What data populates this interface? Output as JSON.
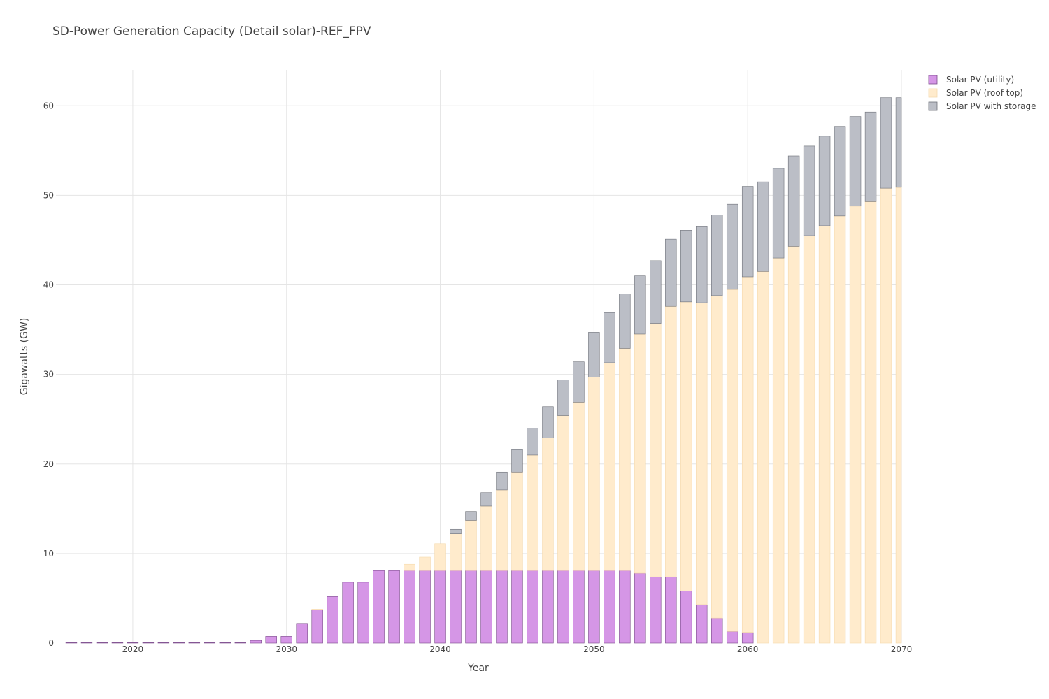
{
  "chart_data": {
    "type": "bar",
    "stacked": true,
    "title": "SD-Power Generation Capacity (Detail solar)-REF_FPV",
    "xlabel": "Year",
    "ylabel": "Gigawatts (GW)",
    "xlim": [
      2015,
      2070
    ],
    "ylim": [
      0,
      64
    ],
    "x_ticks": [
      2020,
      2030,
      2040,
      2050,
      2060,
      2070
    ],
    "y_ticks": [
      0,
      10,
      20,
      30,
      40,
      50,
      60
    ],
    "grid": true,
    "legend_position": "top-right",
    "x": [
      2016,
      2017,
      2018,
      2019,
      2020,
      2021,
      2022,
      2023,
      2024,
      2025,
      2026,
      2027,
      2028,
      2029,
      2030,
      2031,
      2032,
      2033,
      2034,
      2035,
      2036,
      2037,
      2038,
      2039,
      2040,
      2041,
      2042,
      2043,
      2044,
      2045,
      2046,
      2047,
      2048,
      2049,
      2050,
      2051,
      2052,
      2053,
      2054,
      2055,
      2056,
      2057,
      2058,
      2059,
      2060,
      2061,
      2062,
      2063,
      2064,
      2065,
      2066,
      2067,
      2068,
      2069,
      2070
    ],
    "series": [
      {
        "name": "Solar PV (utility)",
        "color": "#d596e6",
        "stroke": "#7a4a8a",
        "values": [
          0.05,
          0.05,
          0.05,
          0.05,
          0.05,
          0.05,
          0.05,
          0.05,
          0.05,
          0.05,
          0.05,
          0.05,
          0.3,
          0.75,
          0.75,
          2.2,
          3.7,
          5.2,
          6.8,
          6.8,
          8.1,
          8.1,
          8.1,
          8.1,
          8.1,
          8.1,
          8.1,
          8.1,
          8.1,
          8.1,
          8.1,
          8.1,
          8.1,
          8.1,
          8.1,
          8.1,
          8.1,
          7.8,
          7.4,
          7.4,
          5.8,
          4.3,
          2.8,
          1.3,
          1.2,
          0,
          0,
          0,
          0,
          0,
          0,
          0,
          0,
          0,
          0
        ]
      },
      {
        "name": "Solar PV (roof top)",
        "color": "#ffebcc",
        "stroke": "#f5d9ad",
        "values": [
          0,
          0,
          0,
          0,
          0,
          0,
          0,
          0,
          0,
          0,
          0,
          0,
          0,
          0,
          0,
          0,
          0.1,
          0,
          0,
          0,
          0,
          0,
          0.7,
          1.5,
          3.0,
          4.1,
          5.6,
          7.2,
          9.0,
          11.0,
          12.9,
          14.8,
          17.3,
          18.8,
          21.6,
          23.2,
          24.8,
          26.7,
          28.3,
          30.2,
          32.3,
          33.7,
          36.0,
          38.2,
          39.7,
          41.5,
          43.0,
          44.3,
          45.5,
          46.6,
          47.7,
          48.8,
          49.3,
          50.8,
          50.9
        ]
      },
      {
        "name": "Solar PV with storage",
        "color": "#bbbec6",
        "stroke": "#6e7179",
        "values": [
          0,
          0,
          0,
          0,
          0,
          0,
          0,
          0,
          0,
          0,
          0,
          0,
          0,
          0,
          0,
          0,
          0,
          0,
          0,
          0,
          0,
          0,
          0,
          0,
          0,
          0.5,
          1.0,
          1.5,
          2.0,
          2.5,
          3.0,
          3.5,
          4.0,
          4.5,
          5.0,
          5.6,
          6.1,
          6.5,
          7.0,
          7.5,
          8.0,
          8.5,
          9.0,
          9.5,
          10.1,
          10.0,
          10.0,
          10.1,
          10.0,
          10.0,
          10.0,
          10.0,
          10.0,
          10.1,
          10.0
        ]
      }
    ]
  }
}
